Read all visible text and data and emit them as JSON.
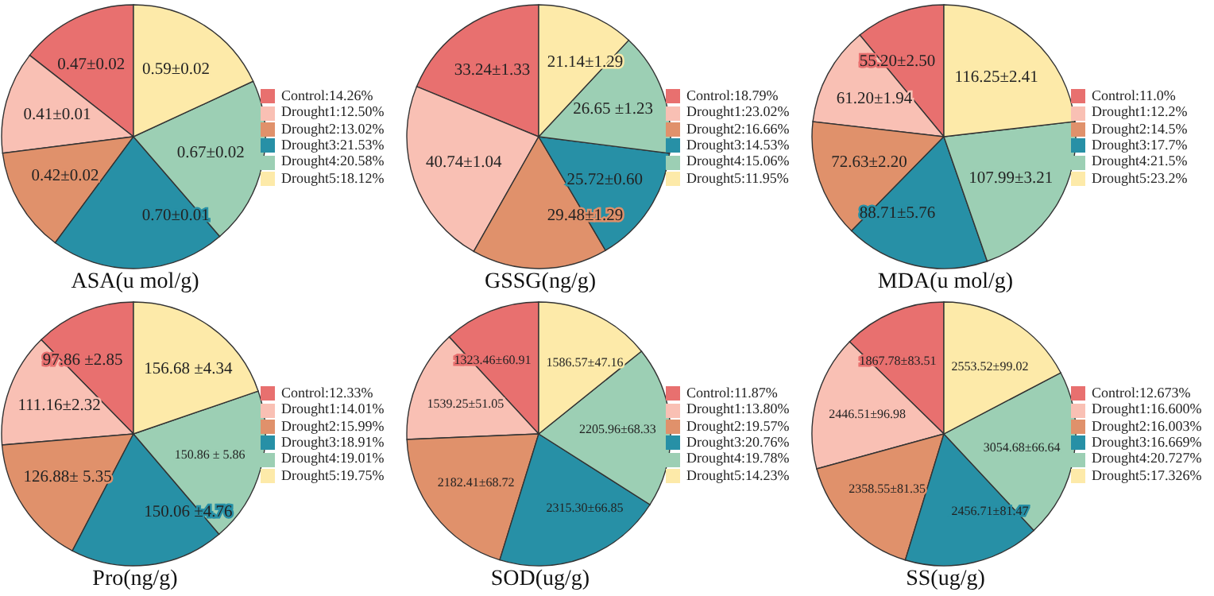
{
  "chart_data": [
    {
      "type": "pie",
      "title": "ASA(u mol/g)",
      "legend": "right",
      "categories": [
        "Control:14.26%",
        "Drought1:12.50%",
        "Drought2:13.02%",
        "Drought3:21.53%",
        "Drought4:20.58%",
        "Drought5:18.12%"
      ],
      "values": [
        0.47,
        0.41,
        0.42,
        0.7,
        0.67,
        0.59
      ],
      "value_labels": [
        "0.47±0.02",
        "0.41±0.01",
        "0.42±0.02",
        "0.70±0.01",
        "0.67±0.02",
        "0.59±0.02"
      ],
      "colors": [
        "#e8706f",
        "#f9c0b4",
        "#e0916b",
        "#2790a6",
        "#9ccfb4",
        "#fdeaa9"
      ]
    },
    {
      "type": "pie",
      "title": "GSSG(ng/g)",
      "legend": "right",
      "categories": [
        "Control:18.79%",
        "Drought1:23.02%",
        "Drought2:16.66%",
        "Drought3:14.53%",
        "Drought4:15.06%",
        "Drought5:11.95%"
      ],
      "values": [
        33.24,
        40.74,
        29.48,
        25.72,
        26.65,
        21.14
      ],
      "value_labels": [
        "33.24±1.33",
        "40.74±1.04",
        "29.48±1.29",
        "25.72±0.60",
        "26.65 ±1.23",
        "21.14±1.29"
      ],
      "colors": [
        "#e8706f",
        "#f9c0b4",
        "#e0916b",
        "#2790a6",
        "#9ccfb4",
        "#fdeaa9"
      ]
    },
    {
      "type": "pie",
      "title": "MDA(u mol/g)",
      "legend": "right",
      "categories": [
        "Control:11.0%",
        "Drought1:12.2%",
        "Drought2:14.5%",
        "Drought3:17.7%",
        "Drought4:21.5%",
        "Drought5:23.2%"
      ],
      "values": [
        55.2,
        61.2,
        72.63,
        88.71,
        107.99,
        116.25
      ],
      "value_labels": [
        "55.20±2.50",
        "61.20±1.94",
        "72.63±2.20",
        "88.71±5.76",
        "107.99±3.21",
        "116.25±2.41"
      ],
      "colors": [
        "#e8706f",
        "#f9c0b4",
        "#e0916b",
        "#2790a6",
        "#9ccfb4",
        "#fdeaa9"
      ]
    },
    {
      "type": "pie",
      "title": "Pro(ng/g)",
      "legend": "right",
      "categories": [
        "Control:12.33%",
        "Drought1:14.01%",
        "Drought2:15.99%",
        "Drought3:18.91%",
        "Drought4:19.01%",
        "Drought5:19.75%"
      ],
      "values": [
        97.86,
        111.16,
        126.88,
        150.06,
        150.86,
        156.68
      ],
      "value_labels": [
        "97.86 ±2.85",
        "111.16±2.32",
        "126.88± 5.35",
        "150.06 ±4.76",
        "150.86 ± 5.86",
        "156.68 ±4.34"
      ],
      "colors": [
        "#e8706f",
        "#f9c0b4",
        "#e0916b",
        "#2790a6",
        "#9ccfb4",
        "#fdeaa9"
      ]
    },
    {
      "type": "pie",
      "title": "SOD(ug/g)",
      "legend": "right",
      "categories": [
        "Control:11.87%",
        "Drought1:13.80%",
        "Drought2:19.57%",
        "Drought3:20.76%",
        "Drought4:19.78%",
        "Drought5:14.23%"
      ],
      "values": [
        1323.46,
        1539.25,
        2182.41,
        2315.3,
        2205.96,
        1586.57
      ],
      "value_labels": [
        "1323.46±60.91",
        "1539.25±51.05",
        "2182.41±68.72",
        "2315.30±66.85",
        "2205.96±68.33",
        "1586.57±47.16"
      ],
      "colors": [
        "#e8706f",
        "#f9c0b4",
        "#e0916b",
        "#2790a6",
        "#9ccfb4",
        "#fdeaa9"
      ]
    },
    {
      "type": "pie",
      "title": "SS(ug/g)",
      "legend": "right",
      "categories": [
        "Control:12.673%",
        "Drought1:16.600%",
        "Drought2:16.003%",
        "Drought3:16.669%",
        "Drought4:20.727%",
        "Drought5:17.326%"
      ],
      "values": [
        1867.78,
        2446.51,
        2358.55,
        2456.71,
        3054.68,
        2553.52
      ],
      "value_labels": [
        "1867.78±83.51",
        "2446.51±96.98",
        "2358.55±81.35",
        "2456.71±81.47",
        "3054.68±66.64",
        "2553.52±99.02"
      ],
      "colors": [
        "#e8706f",
        "#f9c0b4",
        "#e0916b",
        "#2790a6",
        "#9ccfb4",
        "#fdeaa9"
      ]
    }
  ]
}
